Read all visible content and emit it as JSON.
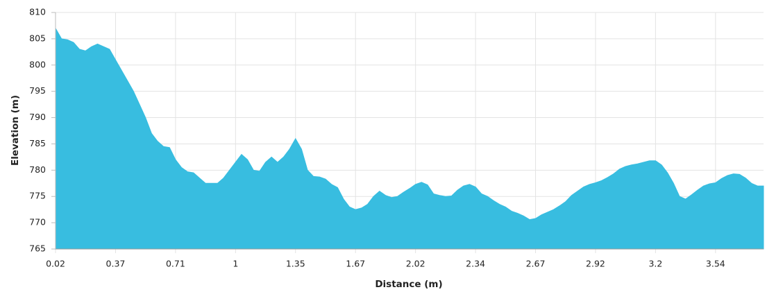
{
  "chart_data": {
    "type": "area",
    "x_label": "Distance (m)",
    "y_label": "Elevation (m)",
    "categories": [
      "0.02",
      null,
      null,
      null,
      null,
      null,
      null,
      null,
      null,
      null,
      "0.37",
      null,
      null,
      null,
      null,
      null,
      null,
      null,
      null,
      null,
      "0.71",
      null,
      null,
      null,
      null,
      null,
      null,
      null,
      null,
      null,
      "1",
      null,
      null,
      null,
      null,
      null,
      null,
      null,
      null,
      null,
      "1.35",
      null,
      null,
      null,
      null,
      null,
      null,
      null,
      null,
      null,
      "1.67",
      null,
      null,
      null,
      null,
      null,
      null,
      null,
      null,
      null,
      "2.02",
      null,
      null,
      null,
      null,
      null,
      null,
      null,
      null,
      null,
      "2.34",
      null,
      null,
      null,
      null,
      null,
      null,
      null,
      null,
      null,
      "2.67",
      null,
      null,
      null,
      null,
      null,
      null,
      null,
      null,
      null,
      "2.92",
      null,
      null,
      null,
      null,
      null,
      null,
      null,
      null,
      null,
      "3.2",
      null,
      null,
      null,
      null,
      null,
      null,
      null,
      null,
      null,
      "3.54",
      null,
      null,
      null,
      null,
      null,
      null,
      null,
      null
    ],
    "values": [
      807,
      805,
      804.8,
      804.3,
      803,
      802.7,
      803.5,
      804,
      803.5,
      803,
      801,
      799,
      797,
      795,
      792.5,
      790,
      787,
      785.5,
      784.5,
      784.3,
      782,
      780.5,
      779.7,
      779.5,
      778.5,
      777.5,
      777.5,
      777.5,
      778.5,
      780,
      781.5,
      783,
      782,
      780,
      779.8,
      781.5,
      782.5,
      781.5,
      782.5,
      784,
      786,
      784,
      780,
      778.8,
      778.7,
      778.3,
      777.3,
      776.7,
      774.5,
      773,
      772.5,
      772.8,
      773.5,
      775,
      776,
      775.2,
      774.8,
      775,
      775.8,
      776.5,
      777.3,
      777.7,
      777.2,
      775.5,
      775.2,
      775,
      775.1,
      776.2,
      777,
      777.3,
      776.8,
      775.5,
      775,
      774.2,
      773.5,
      773,
      772.2,
      771.8,
      771.3,
      770.6,
      770.8,
      771.5,
      772,
      772.5,
      773.2,
      774,
      775.2,
      776,
      776.8,
      777.3,
      777.6,
      778,
      778.6,
      779.3,
      780.2,
      780.7,
      781,
      781.2,
      781.5,
      781.8,
      781.8,
      781,
      779.5,
      777.5,
      775,
      774.5,
      775.3,
      776.2,
      777,
      777.4,
      777.6,
      778.4,
      779,
      779.3,
      779.2,
      778.5,
      777.5,
      777,
      777
    ],
    "color": "#38bde0",
    "ylim": [
      765,
      810
    ],
    "yticks": [
      765,
      770,
      775,
      780,
      785,
      790,
      795,
      800,
      805,
      810
    ],
    "grid": true
  }
}
